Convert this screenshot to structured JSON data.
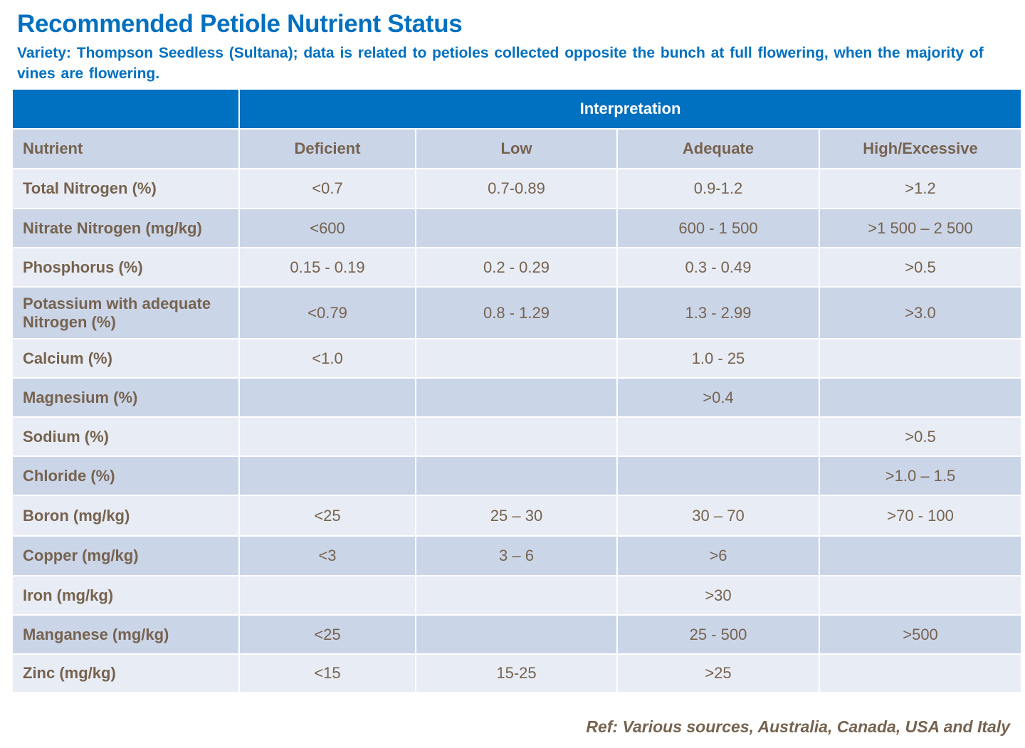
{
  "header": {
    "title": "Recommended Petiole Nutrient Status",
    "subtitle": "Variety: Thompson Seedless (Sultana); data is related to petioles collected opposite the bunch at full flowering, when the majority of vines are flowering."
  },
  "table": {
    "group_header": "Interpretation",
    "columns": [
      "Nutrient",
      "Deficient",
      "Low",
      "Adequate",
      "High/Excessive"
    ],
    "rows": [
      [
        "Total Nitrogen (%)",
        "<0.7",
        "0.7-0.89",
        "0.9-1.2",
        ">1.2"
      ],
      [
        "Nitrate Nitrogen (mg/kg)",
        "<600",
        null,
        "600 - 1 500",
        ">1 500 – 2 500"
      ],
      [
        "Phosphorus (%)",
        "0.15 - 0.19",
        "0.2 - 0.29",
        "0.3 - 0.49",
        ">0.5"
      ],
      [
        "Potassium with adequate Nitrogen (%)",
        "<0.79",
        "0.8 - 1.29",
        "1.3 - 2.99",
        ">3.0"
      ],
      [
        "Calcium (%)",
        "<1.0",
        null,
        "1.0 - 25",
        null
      ],
      [
        "Magnesium (%)",
        null,
        null,
        ">0.4",
        null
      ],
      [
        "Sodium (%)",
        null,
        null,
        null,
        ">0.5"
      ],
      [
        "Chloride (%)",
        null,
        null,
        null,
        ">1.0 – 1.5"
      ],
      [
        "Boron (mg/kg)",
        "<25",
        "25 – 30",
        "30 – 70",
        ">70 - 100"
      ],
      [
        "Copper (mg/kg)",
        "<3",
        "3 – 6",
        ">6",
        null
      ],
      [
        "Iron (mg/kg)",
        null,
        null,
        ">30",
        null
      ],
      [
        "Manganese (mg/kg)",
        "<25",
        null,
        "25 - 500",
        ">500"
      ],
      [
        "Zinc (mg/kg)",
        "<15",
        "15-25",
        ">25",
        null
      ]
    ]
  },
  "footer": {
    "reference": "Ref: Various sources, Australia,  Canada, USA and Italy"
  }
}
